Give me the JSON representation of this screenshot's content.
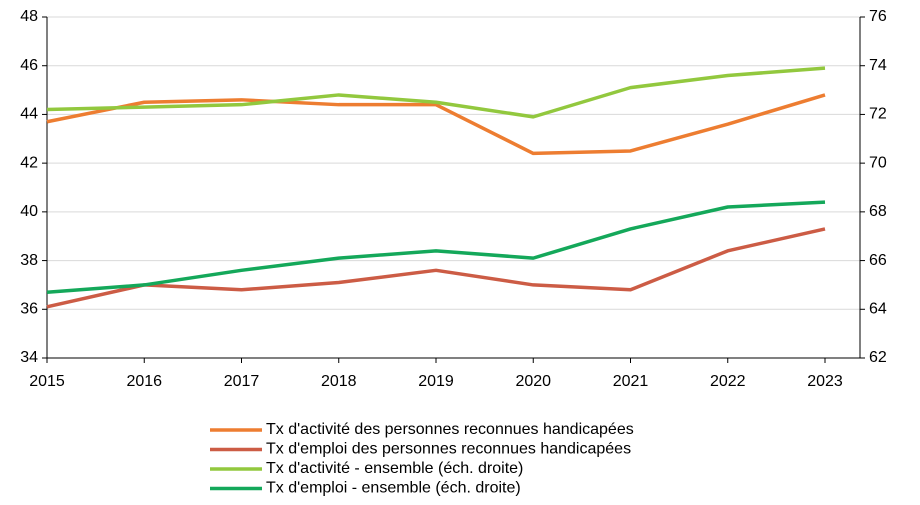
{
  "chart_data": {
    "type": "line",
    "categories": [
      "2015",
      "2016",
      "2017",
      "2018",
      "2019",
      "2020",
      "2021",
      "2022",
      "2023"
    ],
    "series": [
      {
        "name": "Tx d'activité des personnes reconnues handicapées",
        "color": "#ed7d31",
        "values": [
          43.7,
          44.5,
          44.6,
          44.4,
          44.4,
          42.4,
          42.5,
          43.6,
          44.8
        ]
      },
      {
        "name": "Tx d'emploi des personnes reconnues handicapées",
        "color": "#cc5c45",
        "values": [
          36.1,
          37.0,
          36.8,
          37.1,
          37.6,
          37.0,
          36.8,
          38.4,
          39.3
        ]
      },
      {
        "name": "Tx d'activité - ensemble (éch. droite)",
        "color": "#92c83e",
        "axis": "y2",
        "values": [
          72.2,
          72.3,
          72.4,
          72.8,
          72.5,
          71.9,
          73.1,
          73.6,
          73.9
        ]
      },
      {
        "name": "Tx d'emploi - ensemble (éch. droite)",
        "color": "#14a85a",
        "axis": "y2",
        "values": [
          64.7,
          65.0,
          65.6,
          66.1,
          66.4,
          66.1,
          67.3,
          68.2,
          68.4
        ]
      }
    ],
    "ylim": [
      34,
      48
    ],
    "yticks": [
      34,
      36,
      38,
      40,
      42,
      44,
      46,
      48
    ],
    "y2lim": [
      62,
      76
    ],
    "y2ticks": [
      62,
      64,
      66,
      68,
      70,
      72,
      74,
      76
    ],
    "grid": true,
    "legend": "bottom"
  }
}
